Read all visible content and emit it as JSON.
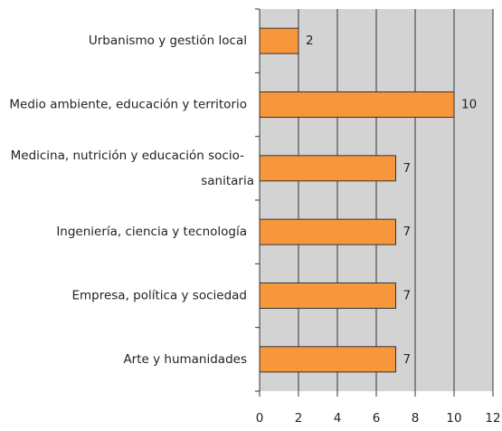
{
  "chart_data": {
    "type": "bar",
    "orientation": "horizontal",
    "categories": [
      "Urbanismo y gestión local",
      "Medio ambiente, educación y territorio",
      "Medicina, nutrición y educación socio-sanitaria",
      "Ingeniería, ciencia y tecnología",
      "Empresa, política y sociedad",
      "Arte y humanidades"
    ],
    "values": [
      2,
      10,
      7,
      7,
      7,
      7
    ],
    "color": "#f7963b",
    "xlim": [
      0,
      12
    ],
    "xticks": [
      0,
      2,
      4,
      6,
      8,
      10,
      12
    ],
    "grid": true
  }
}
